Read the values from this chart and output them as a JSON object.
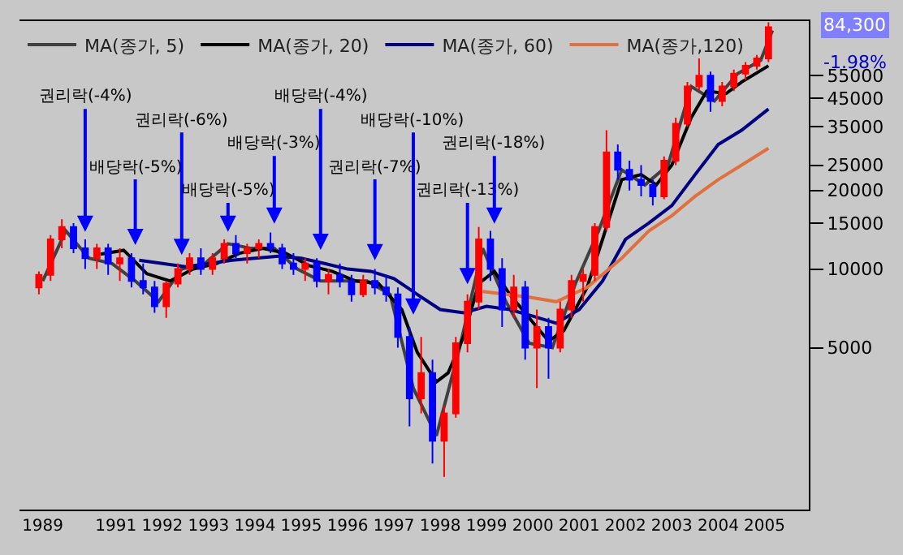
{
  "chart_data": {
    "type": "candlestick",
    "x": [
      "1989-11",
      "1990-02",
      "1990-05",
      "1990-08",
      "1990-11",
      "1991-02",
      "1991-05",
      "1991-08",
      "1991-11",
      "1992-02",
      "1992-05",
      "1992-08",
      "1992-11",
      "1993-02",
      "1993-05",
      "1993-08",
      "1993-11",
      "1994-02",
      "1994-05",
      "1994-08",
      "1994-11",
      "1995-02",
      "1995-05",
      "1995-08",
      "1995-11",
      "1996-02",
      "1996-05",
      "1996-08",
      "1996-11",
      "1997-02",
      "1997-05",
      "1997-08",
      "1997-11",
      "1998-02",
      "1998-05",
      "1998-08",
      "1998-11",
      "1999-02",
      "1999-05",
      "1999-08",
      "1999-11",
      "2000-02",
      "2000-05",
      "2000-08",
      "2000-11",
      "2001-02",
      "2001-05",
      "2001-08",
      "2001-11",
      "2002-02",
      "2002-05",
      "2002-08",
      "2002-11",
      "2003-02",
      "2003-05",
      "2003-08",
      "2003-11",
      "2004-02",
      "2004-05",
      "2004-08",
      "2004-11",
      "2005-02",
      "2005-05",
      "2005-08"
    ],
    "ohlc": [
      [
        8500,
        9800,
        8000,
        9500
      ],
      [
        9500,
        13500,
        9000,
        13000
      ],
      [
        13000,
        15500,
        12000,
        14500
      ],
      [
        14500,
        15000,
        11500,
        12000
      ],
      [
        12000,
        13000,
        10000,
        11000
      ],
      [
        11000,
        12500,
        10000,
        12000
      ],
      [
        12000,
        12500,
        9500,
        10500
      ],
      [
        10500,
        12000,
        9000,
        11000
      ],
      [
        11000,
        11500,
        8500,
        9000
      ],
      [
        9000,
        10500,
        8000,
        8500
      ],
      [
        8500,
        9000,
        6800,
        7200
      ],
      [
        7200,
        9000,
        6500,
        8800
      ],
      [
        8800,
        10500,
        8500,
        10000
      ],
      [
        10000,
        11500,
        9500,
        11000
      ],
      [
        11000,
        12000,
        9500,
        10000
      ],
      [
        10000,
        11500,
        9500,
        11000
      ],
      [
        11000,
        13000,
        10500,
        12500
      ],
      [
        12500,
        13500,
        11000,
        11500
      ],
      [
        11500,
        12500,
        10500,
        12000
      ],
      [
        12000,
        13000,
        11000,
        12500
      ],
      [
        12500,
        13800,
        11500,
        12000
      ],
      [
        12000,
        12500,
        10000,
        10500
      ],
      [
        10500,
        11500,
        9500,
        10000
      ],
      [
        10000,
        11000,
        9000,
        10500
      ],
      [
        10500,
        11000,
        8500,
        9000
      ],
      [
        9000,
        10000,
        8000,
        9500
      ],
      [
        9500,
        10500,
        8500,
        9000
      ],
      [
        9000,
        9500,
        7500,
        8000
      ],
      [
        8000,
        9500,
        7800,
        9000
      ],
      [
        9000,
        10000,
        8000,
        8500
      ],
      [
        8500,
        9500,
        7500,
        8000
      ],
      [
        8000,
        8500,
        5000,
        5500
      ],
      [
        5500,
        6000,
        2500,
        3200
      ],
      [
        3200,
        5500,
        2800,
        4000
      ],
      [
        4000,
        4500,
        1800,
        2200
      ],
      [
        2200,
        3000,
        1600,
        2800
      ],
      [
        2800,
        5500,
        2700,
        5200
      ],
      [
        5200,
        8000,
        4800,
        7500
      ],
      [
        7500,
        14500,
        7000,
        13000
      ],
      [
        13000,
        14000,
        9000,
        10000
      ],
      [
        10000,
        11000,
        6000,
        7000
      ],
      [
        7000,
        9500,
        6500,
        8500
      ],
      [
        8500,
        9000,
        4500,
        5000
      ],
      [
        5000,
        7000,
        3500,
        6000
      ],
      [
        6000,
        6500,
        3800,
        5000
      ],
      [
        5000,
        7500,
        4800,
        7000
      ],
      [
        7000,
        9500,
        6500,
        9000
      ],
      [
        9000,
        10000,
        7500,
        9500
      ],
      [
        9500,
        15000,
        9000,
        14500
      ],
      [
        14500,
        34000,
        14000,
        28000
      ],
      [
        28000,
        30000,
        22000,
        24000
      ],
      [
        24000,
        26000,
        20000,
        22000
      ],
      [
        22000,
        25000,
        19000,
        21000
      ],
      [
        21000,
        22000,
        17500,
        19000
      ],
      [
        19000,
        27000,
        18500,
        26000
      ],
      [
        26000,
        38000,
        25000,
        36000
      ],
      [
        36000,
        52000,
        35000,
        50000
      ],
      [
        50000,
        64000,
        48000,
        55000
      ],
      [
        55000,
        57000,
        40000,
        44000
      ],
      [
        44000,
        52000,
        42000,
        50000
      ],
      [
        50000,
        58000,
        48000,
        56000
      ],
      [
        56000,
        62000,
        53000,
        60000
      ],
      [
        60000,
        66000,
        58000,
        64000
      ],
      [
        64000,
        88000,
        62000,
        84300
      ]
    ],
    "colors": [
      "#ff0000",
      "#ff0000",
      "#ff0000",
      "#0000ff",
      "#0000ff",
      "#ff0000",
      "#0000ff",
      "#ff0000",
      "#0000ff",
      "#0000ff",
      "#0000ff",
      "#ff0000",
      "#ff0000",
      "#ff0000",
      "#0000ff",
      "#ff0000",
      "#ff0000",
      "#0000ff",
      "#ff0000",
      "#ff0000",
      "#0000ff",
      "#0000ff",
      "#0000ff",
      "#ff0000",
      "#0000ff",
      "#ff0000",
      "#0000ff",
      "#0000ff",
      "#ff0000",
      "#0000ff",
      "#0000ff",
      "#0000ff",
      "#0000ff",
      "#ff0000",
      "#0000ff",
      "#ff0000",
      "#ff0000",
      "#ff0000",
      "#ff0000",
      "#0000ff",
      "#0000ff",
      "#ff0000",
      "#0000ff",
      "#ff0000",
      "#0000ff",
      "#ff0000",
      "#ff0000",
      "#ff0000",
      "#ff0000",
      "#ff0000",
      "#0000ff",
      "#0000ff",
      "#0000ff",
      "#0000ff",
      "#ff0000",
      "#ff0000",
      "#ff0000",
      "#ff0000",
      "#0000ff",
      "#ff0000",
      "#ff0000",
      "#ff0000",
      "#ff0000",
      "#ff0000"
    ],
    "series": [
      {
        "name": "MA(종가, 5)",
        "type": "line",
        "color": "#404040",
        "x": [
          "1989-12",
          "1990-06",
          "1990-12",
          "1991-06",
          "1991-12",
          "1992-06",
          "1992-12",
          "1993-06",
          "1993-12",
          "1994-06",
          "1994-12",
          "1995-06",
          "1995-12",
          "1996-06",
          "1996-12",
          "1997-06",
          "1997-12",
          "1998-06",
          "1998-12",
          "1999-06",
          "1999-12",
          "2000-06",
          "2000-12",
          "2001-06",
          "2001-12",
          "2002-06",
          "2002-12",
          "2003-06",
          "2003-12",
          "2004-06",
          "2004-12",
          "2005-06",
          "2005-09"
        ],
        "values": [
          9000,
          14000,
          11000,
          10500,
          9000,
          7500,
          10000,
          10500,
          12500,
          12000,
          12000,
          10000,
          9000,
          9000,
          9000,
          8000,
          3500,
          2300,
          5000,
          12000,
          7500,
          5200,
          5000,
          8800,
          14000,
          24000,
          21000,
          25000,
          50000,
          44000,
          56000,
          63000,
          82000
        ]
      },
      {
        "name": "MA(종가, 20)",
        "type": "line",
        "color": "#000000",
        "x": [
          "1991-03",
          "1991-09",
          "1992-03",
          "1992-09",
          "1993-03",
          "1993-09",
          "1994-03",
          "1994-09",
          "1995-03",
          "1995-09",
          "1996-03",
          "1996-09",
          "1997-03",
          "1997-09",
          "1998-01",
          "1998-06",
          "1998-09",
          "1999-01",
          "1999-05",
          "1999-09",
          "2000-01",
          "2000-06",
          "2000-11",
          "2001-03",
          "2001-09",
          "2002-01",
          "2002-06",
          "2002-11",
          "2003-03",
          "2003-07",
          "2003-12",
          "2004-04",
          "2004-09",
          "2005-01",
          "2005-08"
        ],
        "values": [
          11400,
          11800,
          9600,
          9000,
          10000,
          10500,
          11500,
          12000,
          11500,
          10300,
          9800,
          9000,
          8800,
          7000,
          4800,
          3700,
          4000,
          5500,
          8800,
          9800,
          8000,
          6500,
          5300,
          5800,
          8500,
          13000,
          22000,
          23000,
          21000,
          25000,
          38000,
          48000,
          47000,
          52000,
          60000
        ]
      },
      {
        "name": "MA(종가, 60)",
        "type": "line",
        "color": "#000080",
        "x": [
          "1992-01",
          "1993-01",
          "1994-01",
          "1995-01",
          "1995-07",
          "1996-01",
          "1996-07",
          "1997-01",
          "1997-07",
          "1998-01",
          "1998-07",
          "1999-01",
          "1999-07",
          "2000-01",
          "2000-07",
          "2001-01",
          "2001-07",
          "2002-01",
          "2002-07",
          "2003-01",
          "2003-07",
          "2004-01",
          "2004-07",
          "2005-01",
          "2005-08"
        ],
        "values": [
          10800,
          10200,
          10800,
          11200,
          11000,
          10500,
          10000,
          9800,
          9200,
          8000,
          7000,
          6800,
          7200,
          7000,
          6600,
          6200,
          7000,
          9000,
          13000,
          15000,
          17500,
          23000,
          30000,
          34000,
          41000
        ]
      },
      {
        "name": "MA(종가,120)",
        "type": "line",
        "color": "#e07040",
        "x": [
          "1999-06",
          "2000-06",
          "2001-01",
          "2001-09",
          "2002-06",
          "2003-01",
          "2003-07",
          "2004-01",
          "2004-07",
          "2005-01",
          "2005-08"
        ],
        "values": [
          8200,
          7800,
          7500,
          8500,
          11000,
          14000,
          16000,
          19000,
          22000,
          25000,
          29000
        ]
      }
    ],
    "annotations": [
      {
        "text": "권리락(-4%)",
        "x": "1990-11",
        "y": 13500
      },
      {
        "text": "배당락(-5%)",
        "x": "1991-12",
        "y": 12000
      },
      {
        "text": "권리락(-6%)",
        "x": "1992-12",
        "y": 11000
      },
      {
        "text": "배당락(-5%)",
        "x": "1993-12",
        "y": 13500
      },
      {
        "text": "배당락(-3%)",
        "x": "1994-12",
        "y": 14500
      },
      {
        "text": "배당락(-4%)",
        "x": "1995-12",
        "y": 11500
      },
      {
        "text": "권리락(-7%)",
        "x": "1997-02",
        "y": 10500
      },
      {
        "text": "배당락(-10%)",
        "x": "1997-12",
        "y": 6500
      },
      {
        "text": "권리락(-13%)",
        "x": "1999-02",
        "y": 8500
      },
      {
        "text": "권리락(-18%)",
        "x": "1999-09",
        "y": 14500
      },
      "84,300",
      "-1.98%"
    ],
    "xlim": [
      "1989-06-01",
      "2006-06-15"
    ],
    "xticks": [
      {
        "value": "1989-12-01",
        "label": "1989"
      },
      {
        "value": "1991-07-01",
        "label": "1991"
      },
      {
        "value": "1992-07-01",
        "label": "1992"
      },
      {
        "value": "1993-07-01",
        "label": "1993"
      },
      {
        "value": "1994-07-01",
        "label": "1994"
      },
      {
        "value": "1995-07-01",
        "label": "1995"
      },
      {
        "value": "1996-07-01",
        "label": "1996"
      },
      {
        "value": "1997-07-01",
        "label": "1997"
      },
      {
        "value": "1998-07-01",
        "label": "1998"
      },
      {
        "value": "1999-07-01",
        "label": "1999"
      },
      {
        "value": "2000-07-01",
        "label": "2000"
      },
      {
        "value": "2001-07-01",
        "label": "2001"
      },
      {
        "value": "2002-07-01",
        "label": "2002"
      },
      {
        "value": "2003-07-01",
        "label": "2003"
      },
      {
        "value": "2004-07-01",
        "label": "2004"
      },
      {
        "value": "2005-07-01",
        "label": "2005"
      }
    ],
    "ylim": [
      1200,
      89000
    ],
    "yticks": [
      5000,
      10000,
      15000,
      20000,
      25000,
      35000,
      45000,
      55000
    ],
    "log": "y",
    "grid": false,
    "legend": "top left"
  }
}
